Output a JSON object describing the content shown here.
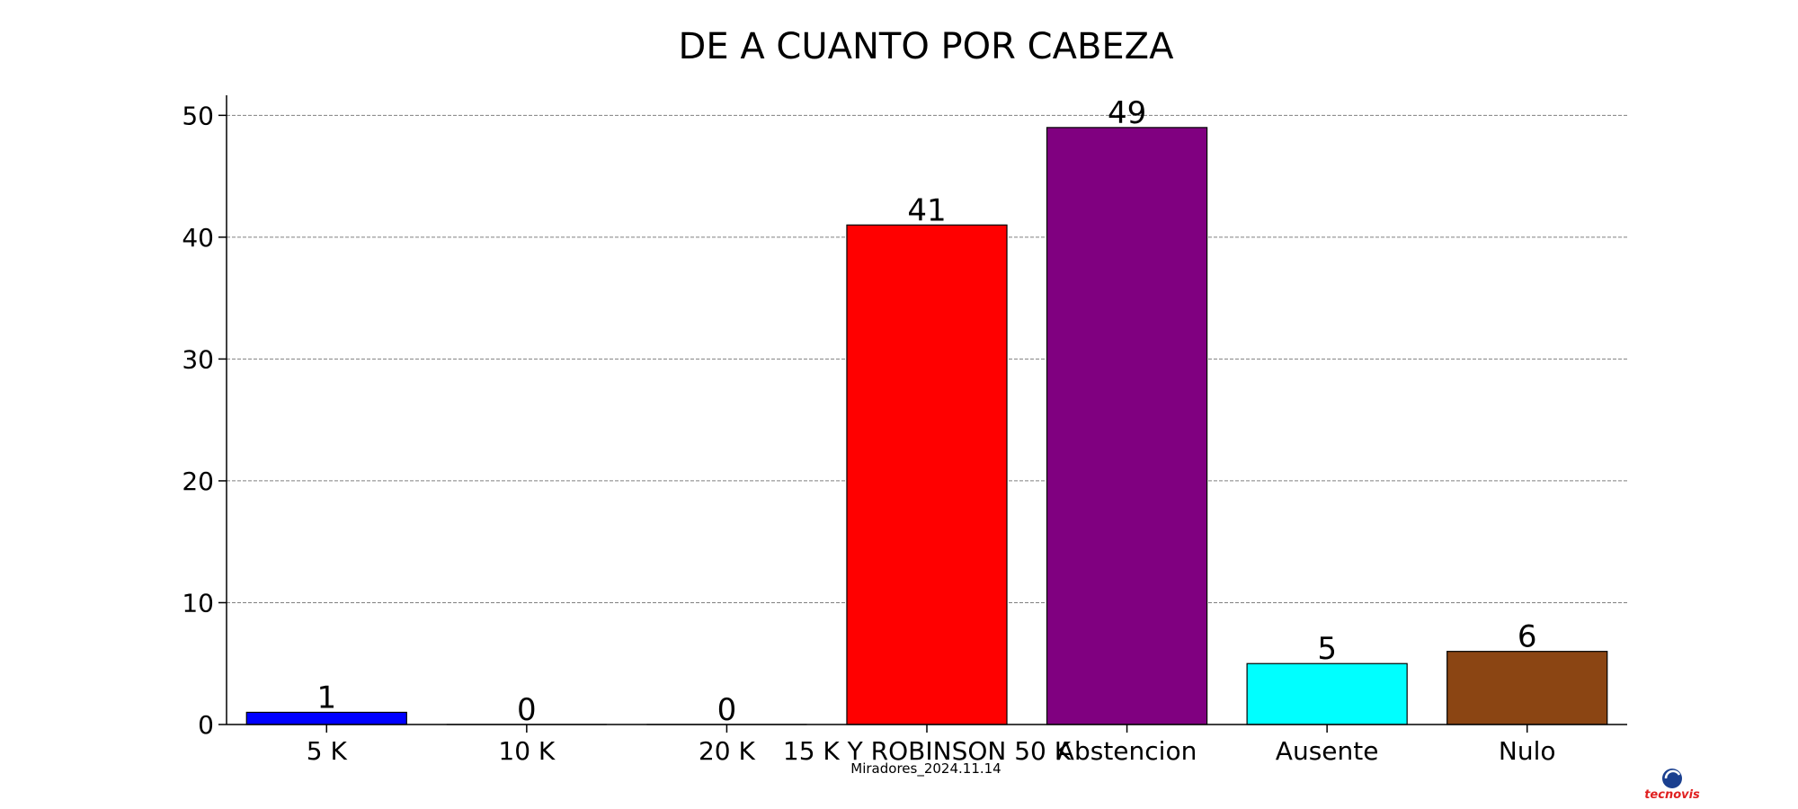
{
  "chart_data": {
    "type": "bar",
    "title": "DE A CUANTO POR CABEZA",
    "xlabel": "",
    "ylabel": "",
    "categories": [
      "5 K",
      "10 K",
      "20 K",
      "15 K Y ROBINSON 50 K",
      "Abstencion",
      "Ausente",
      "Nulo"
    ],
    "values": [
      1,
      0,
      0,
      41,
      49,
      5,
      6
    ],
    "colors": [
      "#0000ff",
      "#0000ff",
      "#0000ff",
      "#ff0000",
      "#800080",
      "#00ffff",
      "#8b4513"
    ],
    "ylim": [
      0,
      51.5
    ],
    "yticks": [
      0,
      10,
      20,
      30,
      40,
      50
    ],
    "grid": "y-dashed",
    "footer": "Miradores_2024.11.14"
  },
  "logo": {
    "text": "tecnovis",
    "icon": "globe-logo-icon"
  }
}
